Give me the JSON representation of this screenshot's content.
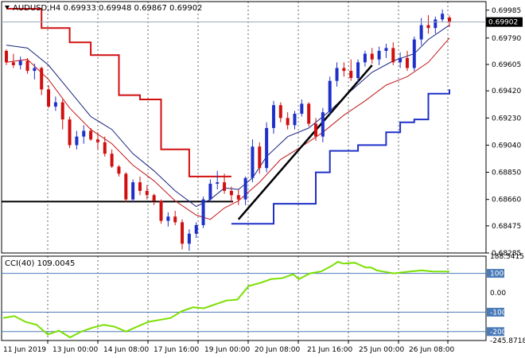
{
  "chart_data": [
    {
      "type": "candlestick",
      "title": "AUDUSD,H4  0.69933 0.69948 0.69867 0.69902",
      "symbol": "AUDUSD",
      "timeframe": "H4",
      "ohlc_last": {
        "open": "0.69933",
        "high": "0.69948",
        "low": "0.69867",
        "close": "0.69902"
      },
      "current_price_label": "0.69902",
      "ylim": [
        0.68285,
        0.70045
      ],
      "y_ticks": [
        "0.69985",
        "0.69790",
        "0.69605",
        "0.69420",
        "0.69230",
        "0.69040",
        "0.68850",
        "0.68660",
        "0.68475",
        "0.68285"
      ],
      "x_ticks": [
        "11 Jun 2019",
        "13 Jun 00:00",
        "14 Jun 08:00",
        "17 Jun 16:00",
        "19 Jun 00:00",
        "20 Jun 08:00",
        "21 Jun 16:00",
        "25 Jun 00:00",
        "26 Jun 08:00"
      ],
      "grid": true,
      "colors": {
        "bull": "#1f30c8",
        "bear": "#d01010",
        "upper_band": "#d01010",
        "lower_band": "#1f30c8",
        "ma_fast": "#1a237e",
        "ma_slow": "#c01818",
        "support": "#000000"
      },
      "support_line_level": 0.68645,
      "candles": [
        [
          0.697,
          0.6971,
          0.696,
          0.6962
        ],
        [
          0.6962,
          0.6968,
          0.6958,
          0.696
        ],
        [
          0.696,
          0.6966,
          0.6957,
          0.6963
        ],
        [
          0.6963,
          0.6965,
          0.6954,
          0.6956
        ],
        [
          0.6956,
          0.6961,
          0.695,
          0.6958
        ],
        [
          0.6958,
          0.6959,
          0.6939,
          0.6943
        ],
        [
          0.6943,
          0.6946,
          0.693,
          0.6931
        ],
        [
          0.6931,
          0.6938,
          0.6928,
          0.6934
        ],
        [
          0.6934,
          0.6936,
          0.6915,
          0.6922
        ],
        [
          0.6922,
          0.6924,
          0.6902,
          0.6904
        ],
        [
          0.6904,
          0.6914,
          0.6901,
          0.691
        ],
        [
          0.691,
          0.6918,
          0.6905,
          0.6914
        ],
        [
          0.6914,
          0.6916,
          0.6907,
          0.6908
        ],
        [
          0.6908,
          0.6913,
          0.6901,
          0.6906
        ],
        [
          0.6906,
          0.691,
          0.6896,
          0.6898
        ],
        [
          0.6898,
          0.6901,
          0.6888,
          0.6889
        ],
        [
          0.6889,
          0.689,
          0.6882,
          0.6884
        ],
        [
          0.6884,
          0.6885,
          0.6864,
          0.6866
        ],
        [
          0.6866,
          0.688,
          0.6864,
          0.6878
        ],
        [
          0.6878,
          0.6882,
          0.6869,
          0.6872
        ],
        [
          0.6872,
          0.6876,
          0.6866,
          0.6869
        ],
        [
          0.6869,
          0.687,
          0.6862,
          0.6865
        ],
        [
          0.6865,
          0.6866,
          0.6849,
          0.6851
        ],
        [
          0.6851,
          0.6857,
          0.6847,
          0.6854
        ],
        [
          0.6854,
          0.6858,
          0.6848,
          0.685
        ],
        [
          0.685,
          0.6852,
          0.6831,
          0.6835
        ],
        [
          0.6835,
          0.6845,
          0.683,
          0.6842
        ],
        [
          0.6842,
          0.685,
          0.6839,
          0.6848
        ],
        [
          0.6848,
          0.6868,
          0.6846,
          0.6866
        ],
        [
          0.6866,
          0.688,
          0.6864,
          0.6877
        ],
        [
          0.6877,
          0.6886,
          0.6873,
          0.6878
        ],
        [
          0.6878,
          0.6884,
          0.687,
          0.6872
        ],
        [
          0.6872,
          0.6875,
          0.6864,
          0.6869
        ],
        [
          0.6869,
          0.6873,
          0.6862,
          0.6866
        ],
        [
          0.6866,
          0.6882,
          0.6862,
          0.6881
        ],
        [
          0.6881,
          0.6908,
          0.6878,
          0.6903
        ],
        [
          0.6903,
          0.6906,
          0.6884,
          0.6888
        ],
        [
          0.6888,
          0.692,
          0.6885,
          0.6916
        ],
        [
          0.6916,
          0.6935,
          0.6912,
          0.6932
        ],
        [
          0.6932,
          0.6934,
          0.692,
          0.6923
        ],
        [
          0.6923,
          0.6927,
          0.6915,
          0.6918
        ],
        [
          0.6918,
          0.6928,
          0.6915,
          0.6926
        ],
        [
          0.6926,
          0.6936,
          0.6924,
          0.6933
        ],
        [
          0.6933,
          0.6934,
          0.6917,
          0.6919
        ],
        [
          0.6919,
          0.6923,
          0.6907,
          0.691
        ],
        [
          0.691,
          0.693,
          0.6906,
          0.6927
        ],
        [
          0.6927,
          0.6952,
          0.6925,
          0.6949
        ],
        [
          0.6949,
          0.6962,
          0.6945,
          0.6958
        ],
        [
          0.6958,
          0.6962,
          0.6952,
          0.6956
        ],
        [
          0.6956,
          0.6964,
          0.6949,
          0.6951
        ],
        [
          0.6951,
          0.6964,
          0.6948,
          0.6962
        ],
        [
          0.6962,
          0.697,
          0.6959,
          0.6968
        ],
        [
          0.6968,
          0.6972,
          0.6961,
          0.6964
        ],
        [
          0.6964,
          0.6973,
          0.696,
          0.697
        ],
        [
          0.697,
          0.6975,
          0.6965,
          0.6972
        ],
        [
          0.6972,
          0.6976,
          0.696,
          0.6962
        ],
        [
          0.6962,
          0.6969,
          0.6958,
          0.6965
        ],
        [
          0.6965,
          0.697,
          0.6956,
          0.6958
        ],
        [
          0.6958,
          0.698,
          0.6956,
          0.6978
        ],
        [
          0.6978,
          0.6993,
          0.6974,
          0.6988
        ],
        [
          0.6988,
          0.6995,
          0.6982,
          0.6986
        ],
        [
          0.6986,
          0.6994,
          0.6982,
          0.6992
        ],
        [
          0.6992,
          0.6999,
          0.699,
          0.6996
        ],
        [
          0.69933,
          0.69948,
          0.69867,
          0.69902
        ]
      ],
      "upper_band": [
        [
          0,
          0.69995
        ],
        [
          3,
          0.69995
        ],
        [
          5,
          0.6986
        ],
        [
          9,
          0.6976
        ],
        [
          12,
          0.6967
        ],
        [
          16,
          0.6939
        ],
        [
          19,
          0.6936
        ],
        [
          22,
          0.6901
        ],
        [
          26,
          0.6882
        ],
        [
          32,
          0.6882
        ]
      ],
      "lower_band": [
        [
          32,
          0.6849
        ],
        [
          36,
          0.6849
        ],
        [
          38,
          0.6863
        ],
        [
          42,
          0.6863
        ],
        [
          44,
          0.6885
        ],
        [
          46,
          0.69
        ],
        [
          50,
          0.6904
        ],
        [
          54,
          0.6913
        ],
        [
          56,
          0.692
        ],
        [
          58,
          0.6922
        ],
        [
          60,
          0.694
        ],
        [
          63,
          0.6943
        ]
      ],
      "ma_fast": [
        [
          0,
          0.6974
        ],
        [
          3,
          0.6972
        ],
        [
          6,
          0.696
        ],
        [
          9,
          0.6942
        ],
        [
          12,
          0.6924
        ],
        [
          15,
          0.6915
        ],
        [
          18,
          0.6898
        ],
        [
          21,
          0.6886
        ],
        [
          24,
          0.6872
        ],
        [
          27,
          0.6861
        ],
        [
          29,
          0.6866
        ],
        [
          31,
          0.6874
        ],
        [
          33,
          0.6873
        ],
        [
          35,
          0.6881
        ],
        [
          37,
          0.6896
        ],
        [
          40,
          0.691
        ],
        [
          43,
          0.6916
        ],
        [
          46,
          0.6928
        ],
        [
          49,
          0.6942
        ],
        [
          52,
          0.6955
        ],
        [
          55,
          0.6963
        ],
        [
          58,
          0.6968
        ],
        [
          60,
          0.6978
        ],
        [
          63,
          0.6988
        ]
      ],
      "ma_slow": [
        [
          0,
          0.6962
        ],
        [
          3,
          0.6964
        ],
        [
          6,
          0.695
        ],
        [
          9,
          0.693
        ],
        [
          12,
          0.6915
        ],
        [
          15,
          0.6905
        ],
        [
          18,
          0.689
        ],
        [
          21,
          0.6879
        ],
        [
          24,
          0.6865
        ],
        [
          27,
          0.6855
        ],
        [
          29,
          0.6852
        ],
        [
          31,
          0.686
        ],
        [
          33,
          0.6865
        ],
        [
          36,
          0.6878
        ],
        [
          39,
          0.6894
        ],
        [
          42,
          0.6903
        ],
        [
          45,
          0.6913
        ],
        [
          48,
          0.6925
        ],
        [
          51,
          0.6935
        ],
        [
          54,
          0.6946
        ],
        [
          57,
          0.6952
        ],
        [
          60,
          0.6962
        ],
        [
          63,
          0.6979
        ]
      ],
      "trendline": [
        [
          33,
          0.6852
        ],
        [
          52,
          0.696
        ]
      ]
    },
    {
      "type": "line",
      "title": "CCI(40) 109.0045",
      "ylim": [
        -245.8718,
        188.5415
      ],
      "y_ticks": [
        "188.5415",
        "100",
        "0.00",
        "-100",
        "-200",
        "-245.8718"
      ],
      "levels": [
        100,
        -100
      ],
      "grid": true,
      "colors": {
        "line": "#7ae000",
        "level": "#4a7ab8"
      },
      "values": [
        [
          0,
          -130
        ],
        [
          2,
          -120
        ],
        [
          4,
          -150
        ],
        [
          6,
          -165
        ],
        [
          8,
          -215
        ],
        [
          10,
          -195
        ],
        [
          12,
          -230
        ],
        [
          14,
          -200
        ],
        [
          16,
          -180
        ],
        [
          18,
          -165
        ],
        [
          20,
          -175
        ],
        [
          22,
          -200
        ],
        [
          24,
          -175
        ],
        [
          26,
          -150
        ],
        [
          28,
          -140
        ],
        [
          30,
          -130
        ],
        [
          32,
          -95
        ],
        [
          34,
          -75
        ],
        [
          36,
          -80
        ],
        [
          38,
          -60
        ],
        [
          40,
          -40
        ],
        [
          42,
          -35
        ],
        [
          44,
          35
        ],
        [
          46,
          50
        ],
        [
          48,
          70
        ],
        [
          50,
          75
        ],
        [
          52,
          95
        ],
        [
          53,
          70
        ],
        [
          55,
          100
        ],
        [
          57,
          110
        ],
        [
          59,
          140
        ],
        [
          60,
          160
        ],
        [
          61,
          150
        ],
        [
          63,
          155
        ],
        [
          65,
          130
        ],
        [
          66,
          130
        ],
        [
          67,
          115
        ],
        [
          68,
          110
        ],
        [
          70,
          100
        ],
        [
          73,
          110
        ],
        [
          75,
          115
        ],
        [
          77,
          110
        ],
        [
          80,
          109
        ]
      ]
    }
  ]
}
